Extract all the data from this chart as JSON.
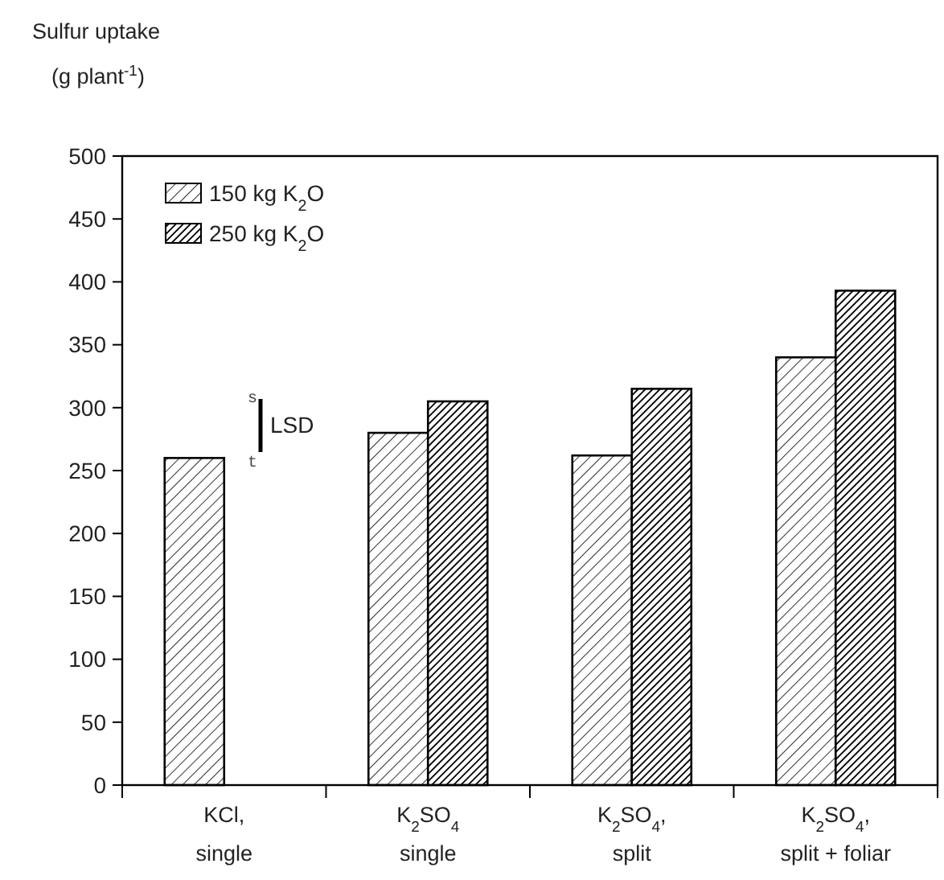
{
  "chart_data": {
    "type": "bar",
    "ylabel": "Sulfur uptake (g plant$^{-1}$)",
    "categories": [
      "KCl, single",
      "K$_{2}$SO$_{4}$ single",
      "K$_{2}$SO$_{4}$, split",
      "K$_{2}$SO$_{4}$, split + foliar"
    ],
    "series": [
      {
        "name": "150 kg K$_{2}$O",
        "color": "#000000",
        "values": [
          260,
          280,
          262,
          340
        ]
      },
      {
        "name": "250 kg K$_{2}$O",
        "color": "#000000",
        "values": [
          null,
          305,
          315,
          393
        ]
      }
    ],
    "ylim": [
      0,
      500
    ],
    "yticks": [
      0,
      50,
      100,
      150,
      200,
      250,
      300,
      350,
      400,
      450,
      500
    ],
    "annotations": [
      "s",
      "LSD",
      "t"
    ],
    "legend": "top left",
    "grid": false
  }
}
